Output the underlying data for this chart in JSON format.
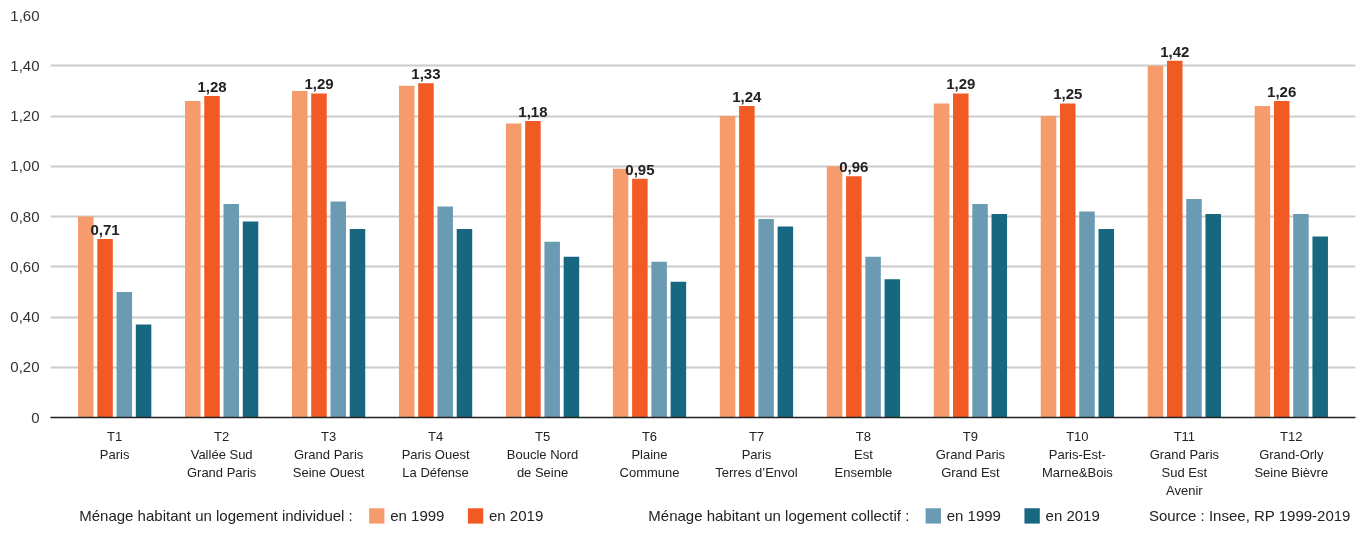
{
  "chart_data": {
    "type": "bar",
    "categories": [
      "T1\nParis",
      "T2\nVallée Sud\nGrand Paris",
      "T3\nGrand Paris\nSeine Ouest",
      "T4\nParis Ouest\nLa Défense",
      "T5\nBoucle Nord\nde Seine",
      "T6\nPlaine\nCommune",
      "T7\nParis\nTerres d’Envol",
      "T8\nEst\nEnsemble",
      "T9\nGrand Paris\nGrand Est",
      "T10\nParis-Est-\nMarne&Bois",
      "T11\nGrand Paris\nSud Est\nAvenir",
      "T12\nGrand-Orly\nSeine Bièvre"
    ],
    "series": [
      {
        "name": "en 1999",
        "color": "#f69c6c",
        "values": [
          0.8,
          1.26,
          1.3,
          1.32,
          1.17,
          0.99,
          1.2,
          1.0,
          1.25,
          1.2,
          1.4,
          1.24
        ]
      },
      {
        "name": "en 2019",
        "color": "#f15a22",
        "values": [
          0.71,
          1.28,
          1.29,
          1.33,
          1.18,
          0.95,
          1.24,
          0.96,
          1.29,
          1.25,
          1.42,
          1.26
        ],
        "value_labels": [
          "0,71",
          "1,28",
          "1,29",
          "1,33",
          "1,18",
          "0,95",
          "1,24",
          "0,96",
          "1,29",
          "1,25",
          "1,42",
          "1,26"
        ]
      },
      {
        "name": "en 1999",
        "color": "#6b9bb3",
        "values": [
          0.5,
          0.85,
          0.86,
          0.84,
          0.7,
          0.62,
          0.79,
          0.64,
          0.85,
          0.82,
          0.87,
          0.81
        ]
      },
      {
        "name": "en 2019",
        "color": "#176781",
        "values": [
          0.37,
          0.78,
          0.75,
          0.75,
          0.64,
          0.54,
          0.76,
          0.55,
          0.81,
          0.75,
          0.81,
          0.72
        ]
      }
    ],
    "ylim": [
      0,
      1.6
    ],
    "yticks": [
      0,
      {
        "value": 0.2,
        "label": "0,20"
      },
      {
        "value": 0.4,
        "label": "0,40"
      },
      {
        "value": 0.6,
        "label": "0,60"
      },
      {
        "value": 0.8,
        "label": "0,80"
      },
      {
        "value": 1.0,
        "label": "1,00"
      },
      {
        "value": 1.2,
        "label": "1,20"
      },
      {
        "value": 1.4,
        "label": "1,40"
      },
      {
        "value": 1.6,
        "label": "1,60"
      }
    ],
    "grid": "y",
    "legend": "bottom",
    "annotations": [
      "Ménage habitant un logement individuel :",
      "Ménage habitant un logement collectif :",
      "Source : Insee, RP 1999-2019"
    ]
  }
}
